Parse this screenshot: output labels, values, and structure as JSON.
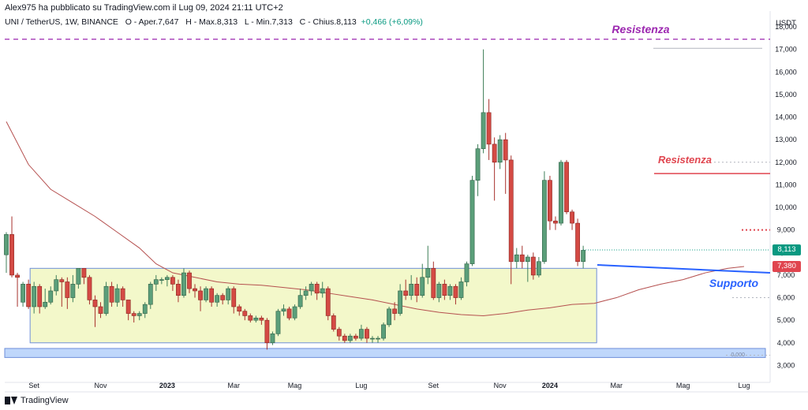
{
  "header": {
    "published_by": "Alex975 ha pubblicato su TradingView.com il Lug 09, 2024 21:11 UTC+2",
    "symbol": "UNI / TetherUS, 1W, BINANCE",
    "open": "O - Aper.7,647",
    "high": "H - Max.8,313",
    "low": "L - Min.7,313",
    "close": "C - Chius.8,113",
    "change": "+0,466 (+6,09%)"
  },
  "footer": {
    "brand": "TradingView"
  },
  "chart_data": {
    "type": "candlestick",
    "currency_label": "USDT",
    "y_ticks": [
      3,
      4,
      5,
      6,
      7,
      8,
      9,
      10,
      11,
      12,
      13,
      14,
      15,
      16,
      17,
      18
    ],
    "y_tick_labels": [
      "3,000",
      "4,000",
      "5,000",
      "6,000",
      "7,000",
      "8,000",
      "9,000",
      "10,000",
      "11,000",
      "12,000",
      "13,000",
      "14,000",
      "15,000",
      "16,000",
      "17,000",
      "18,000"
    ],
    "ylim": [
      2.7,
      18.7
    ],
    "x_tick_labels": [
      "Set",
      "Nov",
      "2023",
      "Mar",
      "Mag",
      "Lug",
      "Set",
      "Nov",
      "2024",
      "Mar",
      "Mag",
      "Lug"
    ],
    "x_tick_weeks": [
      5,
      17,
      29,
      41,
      52,
      64,
      77,
      89,
      98,
      110,
      122,
      133
    ],
    "last_price": 8.113,
    "last_price_label": "8,113",
    "ma_price": 7.38,
    "ma_price_label": "7,380",
    "candles": [
      [
        7.9,
        8.8,
        7.1,
        8.9
      ],
      [
        8.8,
        7.0,
        6.9,
        9.6
      ],
      [
        7.0,
        6.9,
        5.6,
        7.1
      ],
      [
        5.8,
        6.6,
        5.6,
        6.7
      ],
      [
        6.6,
        5.6,
        5.5,
        6.8
      ],
      [
        5.6,
        6.5,
        5.3,
        6.7
      ],
      [
        6.5,
        5.6,
        5.3,
        6.6
      ],
      [
        5.6,
        5.8,
        5.5,
        6.4
      ],
      [
        5.8,
        6.3,
        5.7,
        6.5
      ],
      [
        6.3,
        6.8,
        6.1,
        7.0
      ],
      [
        6.8,
        6.7,
        5.6,
        6.9
      ],
      [
        6.7,
        6.0,
        5.5,
        6.9
      ],
      [
        6.0,
        6.6,
        5.8,
        7.0
      ],
      [
        6.6,
        7.3,
        6.4,
        7.3
      ],
      [
        7.3,
        6.9,
        6.6,
        7.3
      ],
      [
        6.9,
        5.9,
        5.7,
        7.0
      ],
      [
        5.9,
        5.6,
        4.7,
        6.1
      ],
      [
        5.6,
        5.3,
        5.1,
        5.8
      ],
      [
        5.3,
        6.5,
        5.2,
        6.7
      ],
      [
        6.5,
        5.8,
        5.6,
        6.7
      ],
      [
        5.8,
        6.4,
        5.6,
        6.6
      ],
      [
        6.4,
        5.9,
        5.6,
        6.5
      ],
      [
        5.9,
        5.3,
        5.0,
        5.9
      ],
      [
        5.3,
        5.2,
        4.9,
        5.4
      ],
      [
        5.2,
        5.3,
        5.0,
        5.4
      ],
      [
        5.3,
        5.7,
        5.1,
        5.8
      ],
      [
        5.7,
        6.6,
        5.5,
        6.7
      ],
      [
        6.6,
        6.8,
        6.3,
        7.0
      ],
      [
        6.8,
        6.8,
        6.6,
        6.9
      ],
      [
        6.8,
        6.9,
        6.5,
        7.0
      ],
      [
        6.9,
        6.6,
        6.3,
        7.0
      ],
      [
        6.6,
        6.1,
        5.8,
        6.8
      ],
      [
        6.1,
        7.1,
        6.0,
        7.3
      ],
      [
        7.1,
        6.4,
        6.2,
        7.2
      ],
      [
        6.4,
        6.3,
        6.0,
        6.6
      ],
      [
        6.3,
        5.9,
        5.4,
        6.5
      ],
      [
        5.9,
        6.4,
        5.8,
        6.5
      ],
      [
        6.4,
        5.8,
        5.6,
        6.5
      ],
      [
        5.8,
        6.1,
        5.6,
        6.2
      ],
      [
        6.1,
        5.9,
        5.7,
        6.2
      ],
      [
        5.9,
        6.4,
        5.7,
        6.5
      ],
      [
        6.4,
        5.6,
        5.3,
        6.5
      ],
      [
        5.6,
        5.4,
        5.2,
        5.7
      ],
      [
        5.4,
        5.2,
        5.0,
        5.5
      ],
      [
        5.2,
        5.0,
        4.9,
        5.3
      ],
      [
        5.0,
        5.1,
        4.9,
        5.2
      ],
      [
        5.1,
        5.0,
        4.8,
        5.2
      ],
      [
        5.0,
        4.0,
        3.7,
        5.1
      ],
      [
        4.0,
        4.4,
        3.9,
        4.5
      ],
      [
        4.4,
        5.4,
        4.3,
        5.5
      ],
      [
        5.4,
        5.5,
        5.2,
        5.7
      ],
      [
        5.5,
        5.1,
        5.0,
        5.6
      ],
      [
        5.1,
        5.6,
        5.0,
        5.7
      ],
      [
        5.6,
        6.1,
        5.5,
        6.4
      ],
      [
        6.1,
        6.3,
        5.9,
        6.5
      ],
      [
        6.3,
        6.6,
        6.1,
        6.7
      ],
      [
        6.6,
        6.2,
        5.9,
        6.7
      ],
      [
        6.2,
        6.4,
        6.0,
        6.7
      ],
      [
        6.4,
        5.2,
        5.0,
        6.5
      ],
      [
        5.2,
        4.6,
        4.5,
        5.3
      ],
      [
        4.6,
        4.3,
        4.1,
        4.7
      ],
      [
        4.3,
        4.1,
        4.0,
        4.4
      ],
      [
        4.1,
        4.3,
        4.0,
        4.4
      ],
      [
        4.3,
        4.2,
        4.1,
        4.4
      ],
      [
        4.2,
        4.6,
        4.1,
        4.8
      ],
      [
        4.6,
        4.2,
        4.0,
        4.7
      ],
      [
        4.2,
        4.2,
        4.0,
        4.3
      ],
      [
        4.2,
        4.2,
        4.0,
        4.3
      ],
      [
        4.2,
        4.8,
        4.1,
        4.9
      ],
      [
        4.8,
        5.5,
        4.7,
        5.6
      ],
      [
        5.5,
        5.3,
        5.0,
        5.8
      ],
      [
        5.3,
        6.3,
        5.2,
        6.6
      ],
      [
        6.3,
        6.1,
        5.9,
        6.8
      ],
      [
        6.1,
        6.6,
        5.9,
        7.0
      ],
      [
        6.6,
        6.1,
        5.8,
        6.9
      ],
      [
        6.1,
        6.9,
        6.0,
        7.5
      ],
      [
        6.9,
        7.3,
        6.6,
        8.3
      ],
      [
        7.3,
        6.0,
        5.9,
        7.6
      ],
      [
        6.0,
        6.6,
        5.8,
        6.7
      ],
      [
        6.6,
        6.1,
        5.9,
        6.8
      ],
      [
        6.1,
        6.5,
        5.9,
        6.6
      ],
      [
        6.5,
        6.0,
        5.7,
        6.6
      ],
      [
        6.0,
        6.7,
        5.9,
        6.9
      ],
      [
        6.7,
        7.5,
        6.5,
        7.6
      ],
      [
        7.5,
        11.2,
        7.4,
        11.4
      ],
      [
        11.2,
        12.6,
        10.5,
        12.8
      ],
      [
        12.6,
        14.2,
        12.4,
        17.0
      ],
      [
        14.2,
        12.8,
        12.1,
        14.8
      ],
      [
        12.8,
        12.0,
        10.3,
        13.1
      ],
      [
        12.0,
        13.0,
        11.7,
        13.2
      ],
      [
        13.0,
        12.1,
        10.6,
        13.3
      ],
      [
        12.1,
        7.6,
        6.6,
        12.3
      ],
      [
        7.6,
        7.9,
        7.3,
        8.2
      ],
      [
        7.9,
        7.6,
        7.3,
        8.3
      ],
      [
        7.6,
        7.8,
        6.7,
        7.9
      ],
      [
        7.8,
        7.0,
        6.8,
        8.0
      ],
      [
        7.0,
        7.6,
        6.9,
        7.8
      ],
      [
        7.6,
        11.2,
        7.5,
        11.6
      ],
      [
        11.2,
        9.4,
        9.0,
        11.4
      ],
      [
        9.4,
        9.3,
        9.0,
        9.6
      ],
      [
        9.3,
        12.0,
        9.2,
        12.1
      ],
      [
        12.0,
        9.8,
        9.7,
        12.1
      ],
      [
        9.8,
        9.3,
        9.0,
        9.9
      ],
      [
        9.3,
        7.6,
        7.4,
        9.5
      ],
      [
        7.6,
        8.1,
        7.3,
        8.3
      ]
    ],
    "moving_average": [
      [
        0,
        13.8
      ],
      [
        4,
        11.9
      ],
      [
        8,
        10.8
      ],
      [
        12,
        10.2
      ],
      [
        16,
        9.6
      ],
      [
        20,
        8.9
      ],
      [
        24,
        8.2
      ],
      [
        27,
        7.5
      ],
      [
        30,
        7.1
      ],
      [
        34,
        6.9
      ],
      [
        38,
        6.7
      ],
      [
        42,
        6.6
      ],
      [
        46,
        6.55
      ],
      [
        50,
        6.45
      ],
      [
        54,
        6.35
      ],
      [
        58,
        6.2
      ],
      [
        62,
        6.05
      ],
      [
        66,
        5.9
      ],
      [
        70,
        5.7
      ],
      [
        74,
        5.5
      ],
      [
        78,
        5.35
      ],
      [
        82,
        5.25
      ],
      [
        86,
        5.2
      ],
      [
        90,
        5.3
      ],
      [
        94,
        5.45
      ],
      [
        98,
        5.55
      ],
      [
        102,
        5.7
      ],
      [
        106,
        5.75
      ],
      [
        110,
        6.0
      ],
      [
        114,
        6.35
      ],
      [
        118,
        6.6
      ],
      [
        122,
        6.8
      ],
      [
        126,
        7.1
      ],
      [
        130,
        7.3
      ],
      [
        133,
        7.38
      ]
    ],
    "annotations": [
      {
        "text": "Resistenza",
        "color": "#9c27b0",
        "price": 17.45,
        "style": "dashed"
      },
      {
        "text": "Resistenza",
        "color": "#e0454f",
        "price": 11.5,
        "style": "solid"
      },
      {
        "text": "Supporto",
        "color": "#2962ff",
        "price": 7.1,
        "style": "solid"
      }
    ],
    "range_box": {
      "from_week": 5,
      "to_week": 106,
      "low": 4.0,
      "high": 7.3
    },
    "small_label": "0,000"
  }
}
